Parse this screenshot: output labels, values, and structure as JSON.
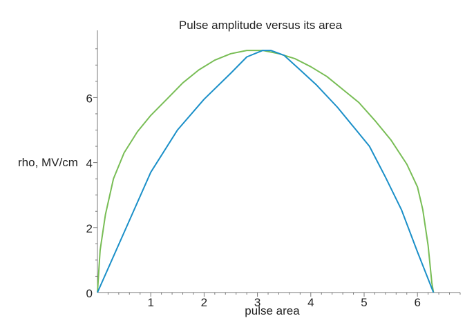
{
  "chart_data": {
    "type": "line",
    "title": "Pulse amplitude versus its area",
    "xlabel": "pulse area",
    "ylabel": "rho, MV/cm",
    "xlim": [
      0,
      6.8
    ],
    "ylim": [
      0,
      7.5
    ],
    "x_ticks": [
      1,
      2,
      3,
      4,
      5,
      6
    ],
    "y_ticks": [
      0,
      2,
      4,
      6
    ],
    "grid": false,
    "legend": "none",
    "series": [
      {
        "color": "#78bd55",
        "points": [
          [
            0,
            0
          ],
          [
            0.05,
            1.3
          ],
          [
            0.15,
            2.4
          ],
          [
            0.3,
            3.5
          ],
          [
            0.5,
            4.3
          ],
          [
            0.75,
            4.95
          ],
          [
            1.0,
            5.45
          ],
          [
            1.3,
            5.95
          ],
          [
            1.6,
            6.45
          ],
          [
            1.9,
            6.85
          ],
          [
            2.2,
            7.15
          ],
          [
            2.5,
            7.35
          ],
          [
            2.8,
            7.45
          ],
          [
            3.1,
            7.45
          ],
          [
            3.4,
            7.35
          ],
          [
            3.7,
            7.2
          ],
          [
            4.0,
            6.95
          ],
          [
            4.3,
            6.65
          ],
          [
            4.6,
            6.25
          ],
          [
            4.9,
            5.85
          ],
          [
            5.2,
            5.3
          ],
          [
            5.5,
            4.7
          ],
          [
            5.8,
            3.95
          ],
          [
            6.0,
            3.25
          ],
          [
            6.1,
            2.55
          ],
          [
            6.2,
            1.45
          ],
          [
            6.27,
            0.3
          ],
          [
            6.3,
            0
          ]
        ]
      },
      {
        "color": "#1a8fc8",
        "points": [
          [
            0,
            0
          ],
          [
            0.5,
            1.85
          ],
          [
            1.0,
            3.7
          ],
          [
            1.5,
            5.0
          ],
          [
            2.0,
            5.95
          ],
          [
            2.5,
            6.75
          ],
          [
            2.8,
            7.25
          ],
          [
            3.1,
            7.45
          ],
          [
            3.25,
            7.45
          ],
          [
            3.5,
            7.3
          ],
          [
            3.8,
            6.85
          ],
          [
            4.1,
            6.4
          ],
          [
            4.5,
            5.7
          ],
          [
            4.8,
            5.1
          ],
          [
            5.1,
            4.5
          ],
          [
            5.4,
            3.55
          ],
          [
            5.7,
            2.55
          ],
          [
            6.0,
            1.25
          ],
          [
            6.3,
            0
          ]
        ]
      }
    ]
  }
}
